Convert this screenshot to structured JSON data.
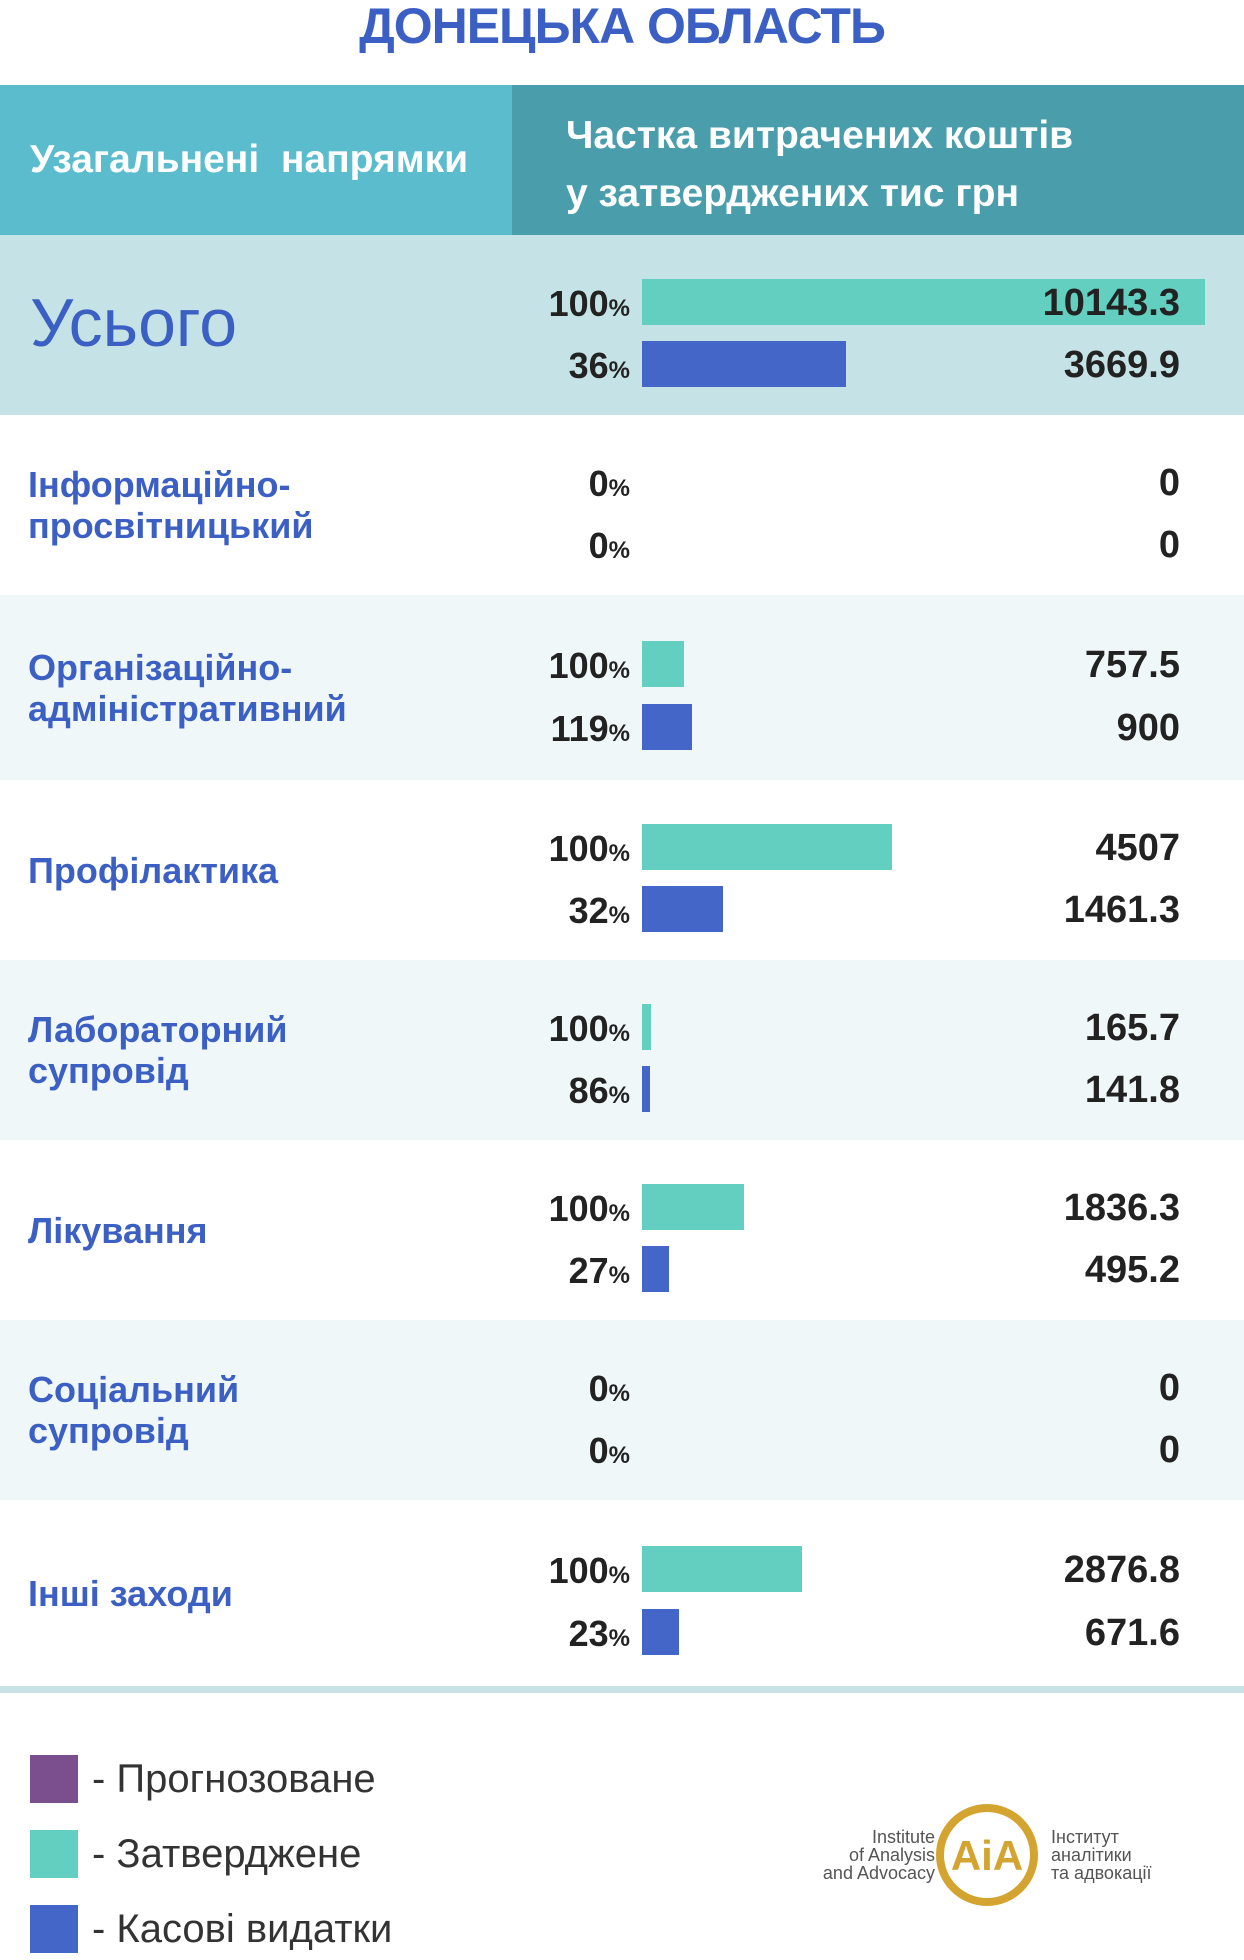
{
  "title": "ДОНЕЦЬКА ОБЛАСТЬ",
  "header": {
    "col1": "Узагальнені  напрямки",
    "col2_line1": "Частка витрачених коштів",
    "col2_line2": "у затверджених тис грн"
  },
  "colors": {
    "approved": "#63cfc0",
    "spent": "#4366c8",
    "forecast": "#7b4f8e",
    "title": "#3c5fc4"
  },
  "rows": [
    {
      "label": "Усього",
      "approved": {
        "pct": "100",
        "value": "10143.3"
      },
      "spent": {
        "pct": "36",
        "value": "3669.9"
      }
    },
    {
      "label": "Інформаційно-\nпросвітницький",
      "approved": {
        "pct": "0",
        "value": "0"
      },
      "spent": {
        "pct": "0",
        "value": "0"
      }
    },
    {
      "label": "Організаційно-\nадміністративний",
      "approved": {
        "pct": "100",
        "value": "757.5"
      },
      "spent": {
        "pct": "119",
        "value": "900"
      }
    },
    {
      "label": "Профілактика",
      "approved": {
        "pct": "100",
        "value": "4507"
      },
      "spent": {
        "pct": "32",
        "value": "1461.3"
      }
    },
    {
      "label": "Лабораторний\nсупровід",
      "approved": {
        "pct": "100",
        "value": "165.7"
      },
      "spent": {
        "pct": "86",
        "value": "141.8"
      }
    },
    {
      "label": "Лікування",
      "approved": {
        "pct": "100",
        "value": "1836.3"
      },
      "spent": {
        "pct": "27",
        "value": "495.2"
      }
    },
    {
      "label": "Соціальний\nсупровід",
      "approved": {
        "pct": "0",
        "value": "0"
      },
      "spent": {
        "pct": "0",
        "value": "0"
      }
    },
    {
      "label": "Інші заходи",
      "approved": {
        "pct": "100",
        "value": "2876.8"
      },
      "spent": {
        "pct": "23",
        "value": "671.6"
      }
    }
  ],
  "pct_unit": "%",
  "legend": [
    {
      "label": "- Прогнозоване",
      "color": "#7b4f8e"
    },
    {
      "label": "- Затверджене",
      "color": "#63cfc0"
    },
    {
      "label": "- Касові видатки",
      "color": "#4366c8"
    }
  ],
  "logo": {
    "en": "Institute\nof Analysis\nand Advocacy",
    "ua": "Інститут\nаналітики\nта адвокації",
    "mark": "AiA"
  },
  "chart_data": {
    "type": "bar",
    "title": "ДОНЕЦЬКА ОБЛАСТЬ",
    "categories": [
      "Усього",
      "Інформаційно-просвітницький",
      "Організаційно-адміністративний",
      "Профілактика",
      "Лабораторний супровід",
      "Лікування",
      "Соціальний супровід",
      "Інші заходи"
    ],
    "series": [
      {
        "name": "Затверджене",
        "values": [
          10143.3,
          0,
          757.5,
          4507,
          165.7,
          1836.3,
          0,
          2876.8
        ]
      },
      {
        "name": "Касові видатки",
        "values": [
          3669.9,
          0,
          900,
          1461.3,
          141.8,
          495.2,
          0,
          671.6
        ]
      }
    ],
    "percent_of_approved": [
      {
        "name": "Затверджене",
        "values": [
          100,
          0,
          100,
          100,
          100,
          100,
          0,
          100
        ]
      },
      {
        "name": "Касові видатки",
        "values": [
          36,
          0,
          119,
          32,
          86,
          27,
          0,
          23
        ]
      }
    ],
    "xlim": [
      0,
      10143.3
    ],
    "legend_position": "bottom-left",
    "grid": false,
    "orientation": "horizontal"
  }
}
